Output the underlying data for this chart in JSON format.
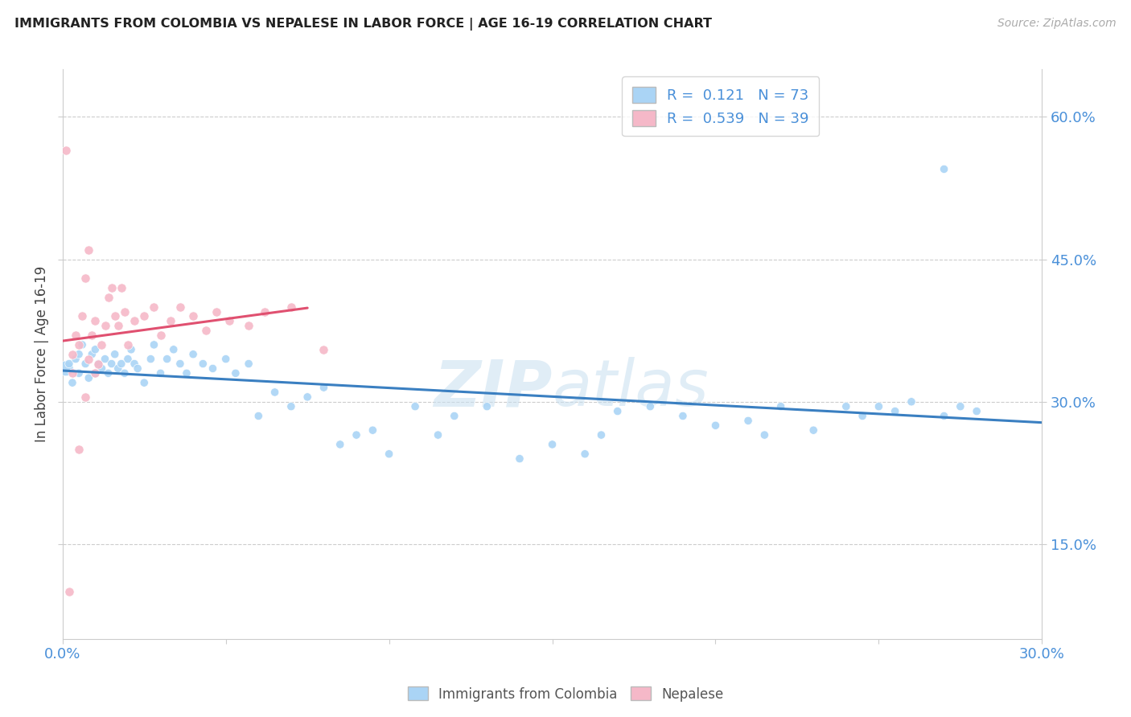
{
  "title": "IMMIGRANTS FROM COLOMBIA VS NEPALESE IN LABOR FORCE | AGE 16-19 CORRELATION CHART",
  "source": "Source: ZipAtlas.com",
  "ylabel": "In Labor Force | Age 16-19",
  "xlim": [
    0.0,
    0.3
  ],
  "ylim": [
    0.05,
    0.65
  ],
  "xticks": [
    0.0,
    0.05,
    0.1,
    0.15,
    0.2,
    0.25,
    0.3
  ],
  "yticks_right": [
    0.15,
    0.3,
    0.45,
    0.6
  ],
  "colombia_R": 0.121,
  "colombia_N": 73,
  "nepalese_R": 0.539,
  "nepalese_N": 39,
  "colombia_color": "#aad4f5",
  "nepalese_color": "#f5b8c8",
  "colombia_line_color": "#3a7fc1",
  "nepalese_line_color": "#e05070",
  "watermark_zip": "ZIP",
  "watermark_atlas": "atlas",
  "legend_label_colombia": "Immigrants from Colombia",
  "legend_label_nepalese": "Nepalese",
  "colombia_x": [
    0.001,
    0.002,
    0.003,
    0.004,
    0.005,
    0.005,
    0.006,
    0.007,
    0.008,
    0.009,
    0.01,
    0.01,
    0.011,
    0.012,
    0.013,
    0.014,
    0.015,
    0.016,
    0.017,
    0.018,
    0.019,
    0.02,
    0.021,
    0.022,
    0.023,
    0.025,
    0.027,
    0.028,
    0.03,
    0.032,
    0.034,
    0.036,
    0.038,
    0.04,
    0.043,
    0.046,
    0.05,
    0.053,
    0.057,
    0.06,
    0.065,
    0.07,
    0.075,
    0.08,
    0.085,
    0.09,
    0.095,
    0.1,
    0.108,
    0.115,
    0.12,
    0.13,
    0.14,
    0.15,
    0.16,
    0.165,
    0.17,
    0.18,
    0.19,
    0.2,
    0.21,
    0.215,
    0.22,
    0.23,
    0.24,
    0.245,
    0.25,
    0.255,
    0.26,
    0.27,
    0.275,
    0.28,
    0.27
  ],
  "colombia_y": [
    0.335,
    0.34,
    0.32,
    0.345,
    0.33,
    0.35,
    0.36,
    0.34,
    0.325,
    0.35,
    0.355,
    0.33,
    0.34,
    0.335,
    0.345,
    0.33,
    0.34,
    0.35,
    0.335,
    0.34,
    0.33,
    0.345,
    0.355,
    0.34,
    0.335,
    0.32,
    0.345,
    0.36,
    0.33,
    0.345,
    0.355,
    0.34,
    0.33,
    0.35,
    0.34,
    0.335,
    0.345,
    0.33,
    0.34,
    0.285,
    0.31,
    0.295,
    0.305,
    0.315,
    0.255,
    0.265,
    0.27,
    0.245,
    0.295,
    0.265,
    0.285,
    0.295,
    0.24,
    0.255,
    0.245,
    0.265,
    0.29,
    0.295,
    0.285,
    0.275,
    0.28,
    0.265,
    0.295,
    0.27,
    0.295,
    0.285,
    0.295,
    0.29,
    0.3,
    0.285,
    0.295,
    0.29,
    0.545
  ],
  "nepalese_x": [
    0.001,
    0.002,
    0.003,
    0.003,
    0.004,
    0.005,
    0.005,
    0.006,
    0.007,
    0.007,
    0.008,
    0.008,
    0.009,
    0.01,
    0.01,
    0.011,
    0.012,
    0.013,
    0.014,
    0.015,
    0.016,
    0.017,
    0.018,
    0.019,
    0.02,
    0.022,
    0.025,
    0.028,
    0.03,
    0.033,
    0.036,
    0.04,
    0.044,
    0.047,
    0.051,
    0.057,
    0.062,
    0.07,
    0.08
  ],
  "nepalese_y": [
    0.565,
    0.1,
    0.33,
    0.35,
    0.37,
    0.25,
    0.36,
    0.39,
    0.305,
    0.43,
    0.46,
    0.345,
    0.37,
    0.385,
    0.33,
    0.34,
    0.36,
    0.38,
    0.41,
    0.42,
    0.39,
    0.38,
    0.42,
    0.395,
    0.36,
    0.385,
    0.39,
    0.4,
    0.37,
    0.385,
    0.4,
    0.39,
    0.375,
    0.395,
    0.385,
    0.38,
    0.395,
    0.4,
    0.355
  ]
}
